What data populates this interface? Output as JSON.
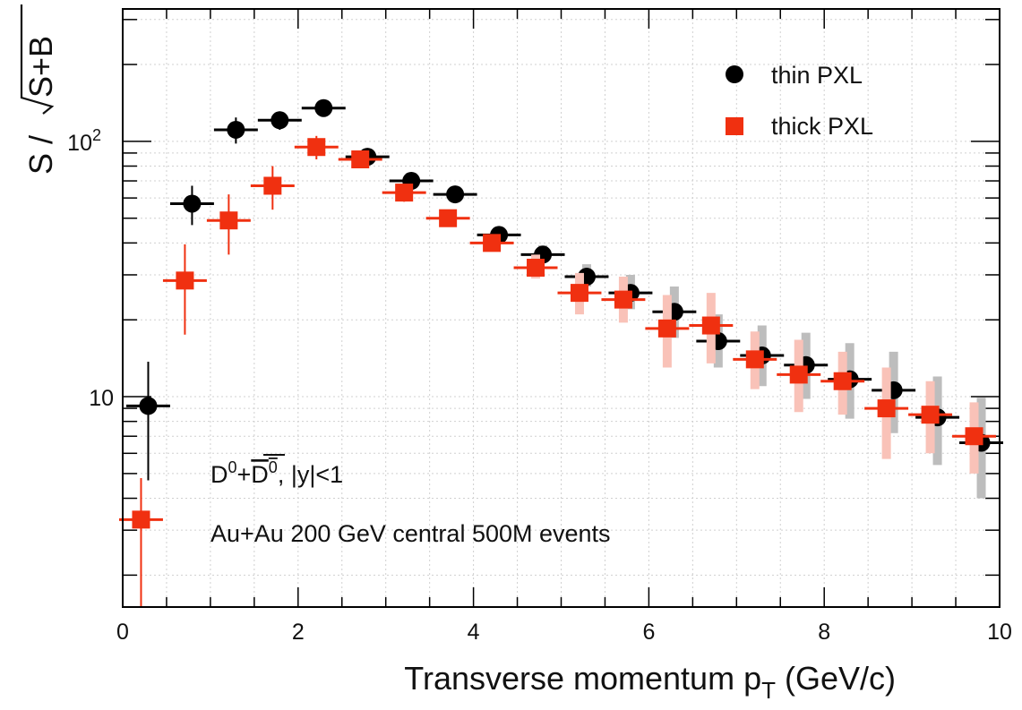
{
  "chart_data": {
    "type": "scatter",
    "xlabel": "Transverse momentum p",
    "xlabel_sub": "T",
    "xlabel_suffix": " (GeV/c)",
    "ylabel": "S / √S+B",
    "xlim": [
      0,
      10
    ],
    "ylim": [
      1.5,
      330
    ],
    "y_scale": "log",
    "x_ticks": [
      0,
      2,
      4,
      6,
      8,
      10
    ],
    "y_tick_labels": [
      {
        "value": 10,
        "base": "10",
        "exp": ""
      },
      {
        "value": 100,
        "base": "10",
        "exp": "2"
      }
    ],
    "grid": true,
    "legend_position": "top-right",
    "annotations": [
      {
        "id": "species",
        "text": "D⁰+D̅⁰, |y|<1"
      },
      {
        "id": "system",
        "text": "Au+Au 200 GeV central 500M events"
      }
    ],
    "series": [
      {
        "name": "thin PXL",
        "color": "#000000",
        "marker": "circle",
        "x": [
          0.25,
          0.75,
          1.25,
          1.75,
          2.25,
          2.75,
          3.25,
          3.75,
          4.25,
          4.75,
          5.25,
          5.75,
          6.25,
          6.75,
          7.25,
          7.75,
          8.25,
          8.75,
          9.25,
          9.75
        ],
        "y": [
          9.2,
          57,
          111,
          121,
          135,
          87,
          70,
          62,
          43,
          36,
          29.5,
          25.5,
          21.5,
          16.5,
          14.5,
          13.3,
          11.7,
          10.6,
          8.3,
          6.6
        ],
        "y_err_low": [
          4.5,
          10,
          13,
          10,
          8,
          6,
          5,
          4,
          2.5,
          2.5,
          2.5,
          3.5,
          4.5,
          3.5,
          3.5,
          3.5,
          3.5,
          3.4,
          2.9,
          2.6
        ],
        "y_err_high": [
          4.5,
          10,
          13,
          10,
          8,
          6,
          5,
          4,
          2.5,
          3.2,
          3.5,
          4.5,
          5.5,
          4.5,
          4.5,
          4.5,
          4.5,
          4.4,
          3.7,
          3.3
        ]
      },
      {
        "name": "thick PXL",
        "color": "#f03010",
        "marker": "square",
        "x": [
          0.25,
          0.75,
          1.25,
          1.75,
          2.25,
          2.75,
          3.25,
          3.75,
          4.25,
          4.75,
          5.25,
          5.75,
          6.25,
          6.75,
          7.25,
          7.75,
          8.25,
          8.75,
          9.25,
          9.75
        ],
        "y": [
          3.3,
          28.5,
          49,
          67,
          95,
          85,
          63,
          50,
          40,
          32,
          25.5,
          24,
          18.5,
          19,
          14,
          12.2,
          11.5,
          9,
          8.5,
          7
        ],
        "y_err_low": [
          2.4,
          11,
          13,
          13,
          10,
          6,
          5,
          3.5,
          2.5,
          3,
          4.5,
          4.5,
          5.5,
          5.5,
          3.3,
          3.5,
          3,
          3.3,
          2.5,
          2
        ],
        "y_err_high": [
          1.5,
          11,
          13,
          13,
          10,
          6,
          5,
          3.5,
          3,
          4,
          5,
          5.5,
          6.5,
          6.5,
          4,
          4.5,
          3.5,
          4,
          3,
          2.5
        ]
      }
    ]
  }
}
